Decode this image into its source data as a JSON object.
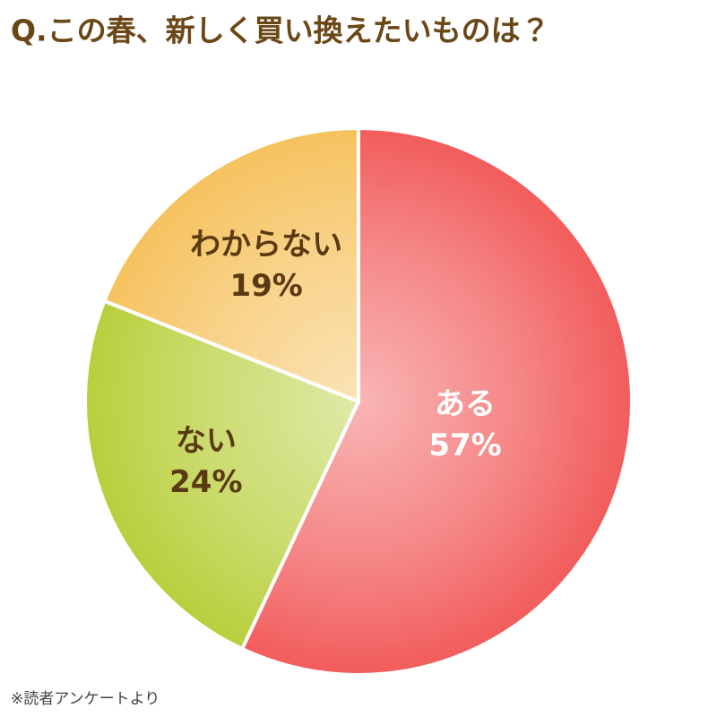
{
  "chart_data": {
    "type": "pie",
    "title": "Q.この春、新しく買い換えたいものは？",
    "categories": [
      "ある",
      "ない",
      "わからない"
    ],
    "values": [
      57,
      24,
      19
    ],
    "value_labels": [
      "57%",
      "24%",
      "19%"
    ],
    "colors": [
      "#f25c5c",
      "#b9cf3c",
      "#f6c25e"
    ],
    "label_colors": [
      "#ffffff",
      "#5a3a12",
      "#5a3a12"
    ],
    "start_angle": 0,
    "direction": "clockwise",
    "source": "※読者アンケートより"
  }
}
